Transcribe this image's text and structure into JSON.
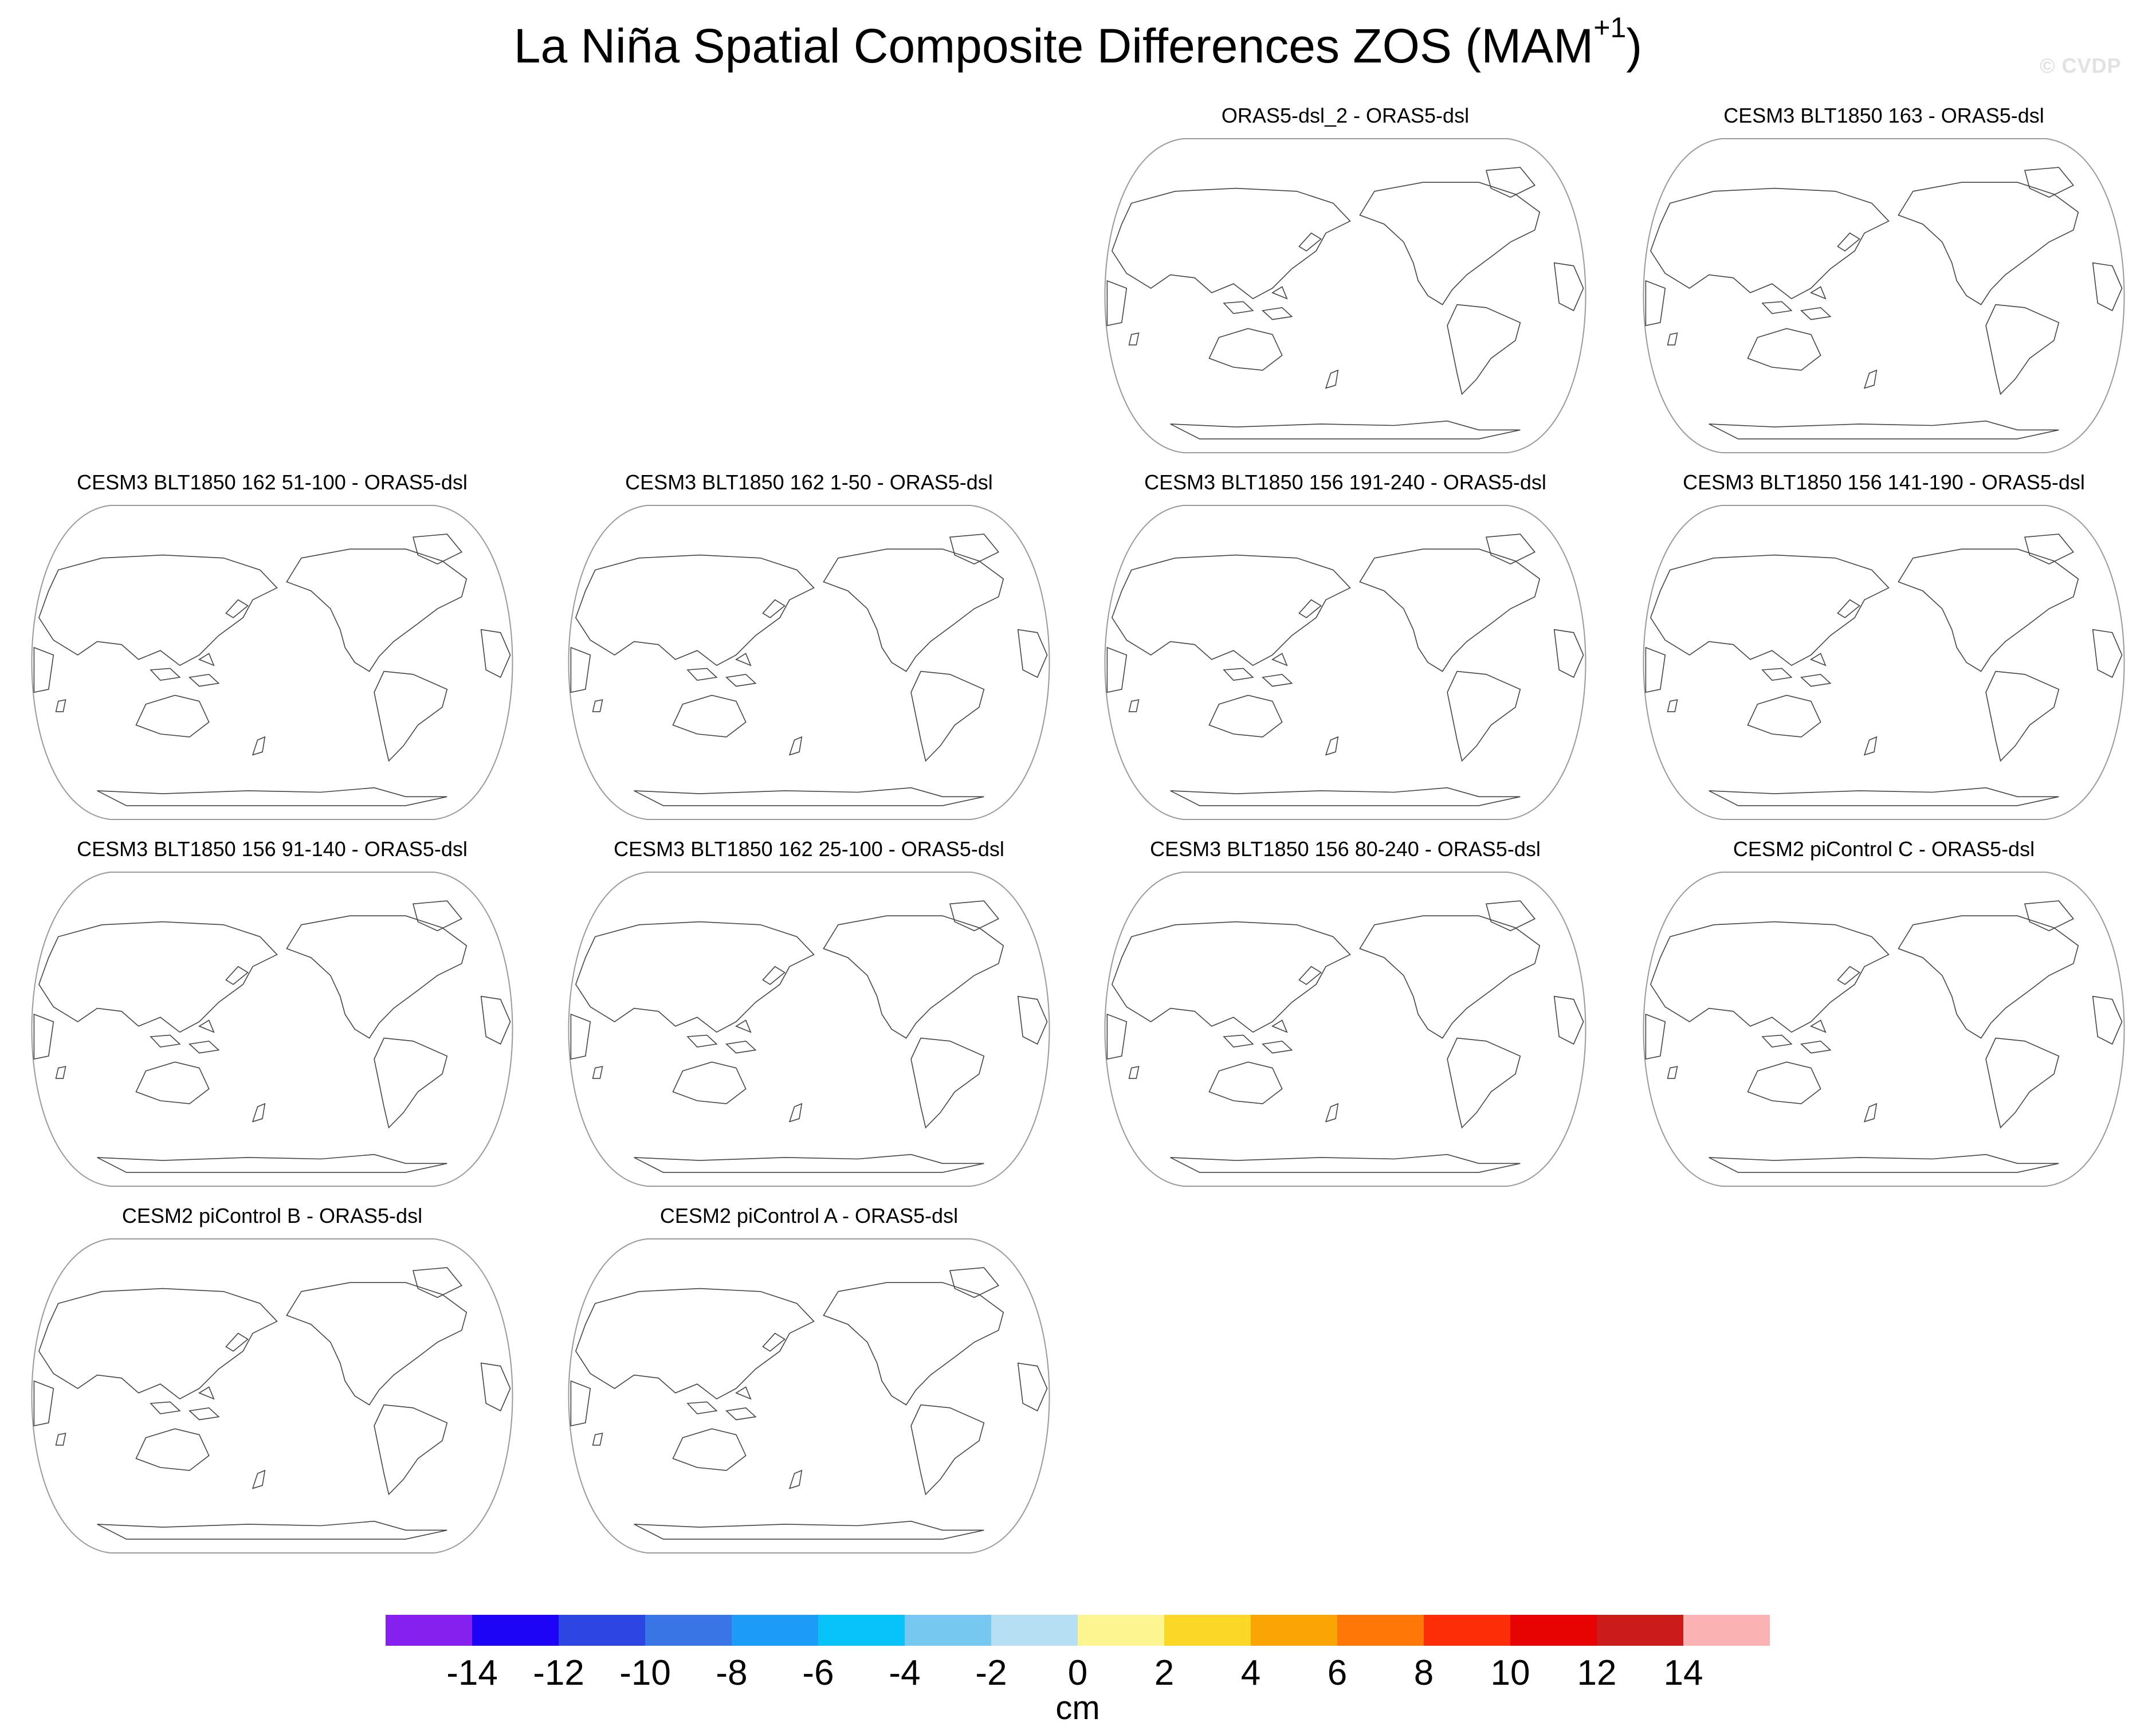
{
  "title": {
    "main": "La Niña Spatial Composite Differences ZOS (MAM",
    "superscript": "+1",
    "close": ")"
  },
  "watermark": "© CVDP",
  "chart_data": {
    "type": "map-panel-grid",
    "title": "La Niña Spatial Composite Differences ZOS (MAM+1)",
    "projection": "Robinson (Pacific-centered)",
    "panels": [
      {
        "title": "ORAS5-dsl_2 - ORAS5-dsl"
      },
      {
        "title": "CESM3 BLT1850 163 - ORAS5-dsl"
      },
      {
        "title": "CESM3 BLT1850 162 51-100 - ORAS5-dsl"
      },
      {
        "title": "CESM3 BLT1850 162 1-50 - ORAS5-dsl"
      },
      {
        "title": "CESM3 BLT1850 156 191-240 - ORAS5-dsl"
      },
      {
        "title": "CESM3 BLT1850 156 141-190 - ORAS5-dsl"
      },
      {
        "title": "CESM3 BLT1850 156 91-140 - ORAS5-dsl"
      },
      {
        "title": "CESM3 BLT1850 162 25-100 - ORAS5-dsl"
      },
      {
        "title": "CESM3 BLT1850 156 80-240 - ORAS5-dsl"
      },
      {
        "title": "CESM2 piControl C - ORAS5-dsl"
      },
      {
        "title": "CESM2 piControl B - ORAS5-dsl"
      },
      {
        "title": "CESM2 piControl A - ORAS5-dsl"
      }
    ],
    "colorbar": {
      "label": "cm",
      "tick_labels": [
        "-14",
        "-12",
        "-10",
        "-8",
        "-6",
        "-4",
        "-2",
        "0",
        "2",
        "4",
        "6",
        "8",
        "10",
        "12",
        "14"
      ],
      "colors": [
        "#8620ef",
        "#1e04f7",
        "#2d46e3",
        "#3a75e6",
        "#1c9bf9",
        "#08c3f7",
        "#77c8f0",
        "#b6dff4",
        "#fdf58f",
        "#fbd825",
        "#fba505",
        "#fd7807",
        "#fd2d07",
        "#e80303",
        "#cc1b1b",
        "#fbb2b2"
      ]
    }
  }
}
